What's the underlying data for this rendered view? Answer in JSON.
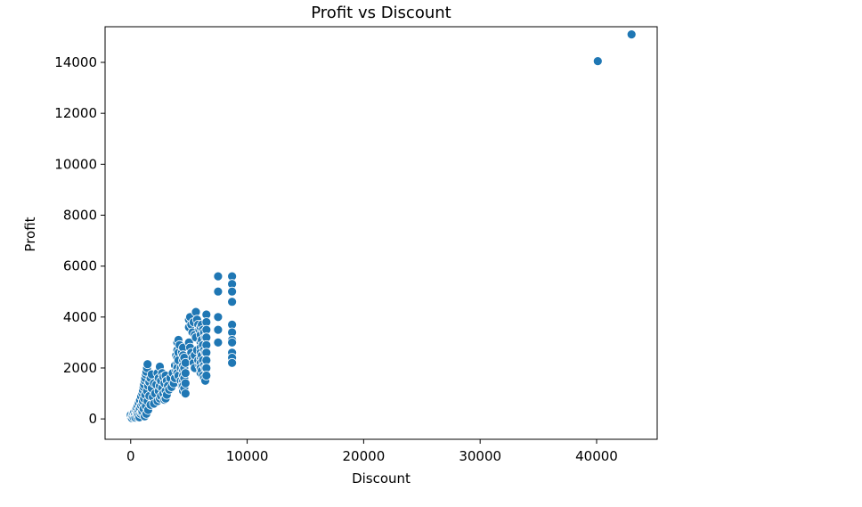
{
  "chart_data": {
    "type": "scatter",
    "title": "Profit vs Discount",
    "xlabel": "Discount",
    "ylabel": "Profit",
    "xlim": [
      -2200,
      45200
    ],
    "ylim": [
      -800,
      15400
    ],
    "xticks": [
      0,
      10000,
      20000,
      30000,
      40000
    ],
    "xtick_labels": [
      "0",
      "10000",
      "20000",
      "30000",
      "40000"
    ],
    "yticks": [
      0,
      2000,
      4000,
      6000,
      8000,
      10000,
      12000,
      14000
    ],
    "ytick_labels": [
      "0",
      "2000",
      "4000",
      "6000",
      "8000",
      "10000",
      "12000",
      "14000"
    ],
    "grid": false,
    "point_color": "#1f77b4",
    "edge_color": "#ffffff",
    "points": [
      [
        0,
        80
      ],
      [
        0,
        150
      ],
      [
        100,
        30
      ],
      [
        150,
        120
      ],
      [
        200,
        200
      ],
      [
        250,
        60
      ],
      [
        300,
        260
      ],
      [
        350,
        140
      ],
      [
        400,
        50
      ],
      [
        450,
        330
      ],
      [
        500,
        180
      ],
      [
        500,
        420
      ],
      [
        550,
        90
      ],
      [
        600,
        500
      ],
      [
        600,
        260
      ],
      [
        650,
        140
      ],
      [
        700,
        620
      ],
      [
        700,
        350
      ],
      [
        750,
        60
      ],
      [
        800,
        740
      ],
      [
        800,
        420
      ],
      [
        850,
        200
      ],
      [
        900,
        880
      ],
      [
        900,
        520
      ],
      [
        950,
        260
      ],
      [
        1000,
        1000
      ],
      [
        1000,
        600
      ],
      [
        1000,
        300
      ],
      [
        1050,
        1120
      ],
      [
        1050,
        700
      ],
      [
        1100,
        1250
      ],
      [
        1100,
        400
      ],
      [
        1150,
        1350
      ],
      [
        1150,
        800
      ],
      [
        1200,
        1500
      ],
      [
        1200,
        100
      ],
      [
        1250,
        1600
      ],
      [
        1250,
        950
      ],
      [
        1300,
        1750
      ],
      [
        1300,
        500
      ],
      [
        1350,
        1850
      ],
      [
        1350,
        200
      ],
      [
        1400,
        2000
      ],
      [
        1400,
        1100
      ],
      [
        1450,
        2150
      ],
      [
        1450,
        700
      ],
      [
        1500,
        1300
      ],
      [
        1500,
        350
      ],
      [
        1600,
        1450
      ],
      [
        1600,
        900
      ],
      [
        1700,
        1600
      ],
      [
        1700,
        550
      ],
      [
        1800,
        1200
      ],
      [
        1800,
        1750
      ],
      [
        1900,
        850
      ],
      [
        2000,
        1400
      ],
      [
        2000,
        600
      ],
      [
        2100,
        1000
      ],
      [
        2200,
        1350
      ],
      [
        2300,
        1800
      ],
      [
        2300,
        700
      ],
      [
        2400,
        1600
      ],
      [
        2400,
        1100
      ],
      [
        2500,
        2050
      ],
      [
        2500,
        1300
      ],
      [
        2500,
        800
      ],
      [
        2600,
        1500
      ],
      [
        2600,
        900
      ],
      [
        2700,
        1800
      ],
      [
        2700,
        1200
      ],
      [
        2800,
        1650
      ],
      [
        2800,
        1000
      ],
      [
        2900,
        1400
      ],
      [
        2900,
        750
      ],
      [
        3000,
        1700
      ],
      [
        3000,
        1100
      ],
      [
        3000,
        800
      ],
      [
        3100,
        1500
      ],
      [
        3100,
        950
      ],
      [
        3200,
        1300
      ],
      [
        3300,
        1150
      ],
      [
        3400,
        1600
      ],
      [
        3500,
        1250
      ],
      [
        3600,
        1800
      ],
      [
        3700,
        1400
      ],
      [
        3800,
        2100
      ],
      [
        3800,
        1600
      ],
      [
        3900,
        2500
      ],
      [
        3900,
        1900
      ],
      [
        4000,
        3000
      ],
      [
        4000,
        2700
      ],
      [
        4000,
        2400
      ],
      [
        4000,
        2200
      ],
      [
        4000,
        2000
      ],
      [
        4000,
        1800
      ],
      [
        4100,
        3100
      ],
      [
        4100,
        2600
      ],
      [
        4100,
        2300
      ],
      [
        4100,
        1700
      ],
      [
        4200,
        2900
      ],
      [
        4300,
        2000
      ],
      [
        4300,
        1500
      ],
      [
        4400,
        2600
      ],
      [
        4400,
        1300
      ],
      [
        4500,
        2800
      ],
      [
        4500,
        2500
      ],
      [
        4500,
        2300
      ],
      [
        4500,
        2100
      ],
      [
        4500,
        1900
      ],
      [
        4500,
        1700
      ],
      [
        4500,
        1500
      ],
      [
        4500,
        1300
      ],
      [
        4500,
        1100
      ],
      [
        4600,
        2400
      ],
      [
        4600,
        2000
      ],
      [
        4600,
        1600
      ],
      [
        4600,
        1200
      ],
      [
        4700,
        2200
      ],
      [
        4700,
        1800
      ],
      [
        4700,
        1400
      ],
      [
        4700,
        1000
      ],
      [
        5000,
        3900
      ],
      [
        5000,
        3600
      ],
      [
        5000,
        3000
      ],
      [
        5100,
        4000
      ],
      [
        5100,
        2800
      ],
      [
        5200,
        3700
      ],
      [
        5200,
        2600
      ],
      [
        5300,
        3400
      ],
      [
        5300,
        2400
      ],
      [
        5400,
        3800
      ],
      [
        5400,
        2200
      ],
      [
        5500,
        3300
      ],
      [
        5500,
        2500
      ],
      [
        5500,
        2000
      ],
      [
        5600,
        4200
      ],
      [
        5600,
        3200
      ],
      [
        5700,
        3900
      ],
      [
        5700,
        2700
      ],
      [
        5800,
        3700
      ],
      [
        5800,
        2300
      ],
      [
        5900,
        3500
      ],
      [
        5900,
        2100
      ],
      [
        6000,
        3600
      ],
      [
        6000,
        3300
      ],
      [
        6000,
        3000
      ],
      [
        6000,
        2800
      ],
      [
        6000,
        2600
      ],
      [
        6000,
        2400
      ],
      [
        6000,
        2200
      ],
      [
        6000,
        2000
      ],
      [
        6000,
        1800
      ],
      [
        6100,
        3700
      ],
      [
        6100,
        3100
      ],
      [
        6100,
        2500
      ],
      [
        6100,
        1900
      ],
      [
        6200,
        3500
      ],
      [
        6200,
        2900
      ],
      [
        6200,
        2300
      ],
      [
        6200,
        1700
      ],
      [
        6300,
        3400
      ],
      [
        6300,
        2700
      ],
      [
        6300,
        2100
      ],
      [
        6300,
        1600
      ],
      [
        6400,
        3200
      ],
      [
        6400,
        2600
      ],
      [
        6400,
        2000
      ],
      [
        6400,
        1500
      ],
      [
        6500,
        4100
      ],
      [
        6500,
        3800
      ],
      [
        6500,
        3500
      ],
      [
        6500,
        3200
      ],
      [
        6500,
        2900
      ],
      [
        6500,
        2600
      ],
      [
        6500,
        2300
      ],
      [
        6500,
        2000
      ],
      [
        6500,
        1700
      ],
      [
        7500,
        5600
      ],
      [
        7500,
        5000
      ],
      [
        7500,
        4000
      ],
      [
        7500,
        3500
      ],
      [
        7500,
        3000
      ],
      [
        8700,
        5600
      ],
      [
        8700,
        5300
      ],
      [
        8700,
        5000
      ],
      [
        8700,
        4600
      ],
      [
        8700,
        3700
      ],
      [
        8700,
        3400
      ],
      [
        8700,
        3100
      ],
      [
        8700,
        3000
      ],
      [
        8700,
        2600
      ],
      [
        8700,
        2400
      ],
      [
        8700,
        2200
      ],
      [
        40100,
        14050
      ],
      [
        43000,
        15100
      ]
    ]
  }
}
